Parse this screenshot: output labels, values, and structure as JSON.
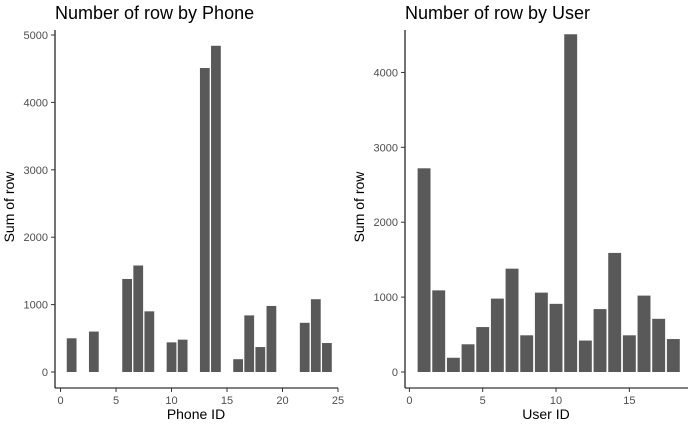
{
  "colors": {
    "bar": "#595959",
    "axis": "#000000",
    "tick_label": "#4d4d4d",
    "background": "#ffffff"
  },
  "chart_data": [
    {
      "type": "bar",
      "title": "Number of row by Phone",
      "xlabel": "Phone ID",
      "ylabel": "Sum of row",
      "xlim": [
        -0.5,
        25
      ],
      "ylim": [
        0,
        5000
      ],
      "xticks": [
        0,
        5,
        10,
        15,
        20,
        25
      ],
      "yticks": [
        0,
        1000,
        2000,
        3000,
        4000,
        5000
      ],
      "grid": false,
      "x": [
        1,
        3,
        6,
        7,
        8,
        10,
        11,
        13,
        14,
        16,
        17,
        18,
        19,
        22,
        23,
        24
      ],
      "values": [
        500,
        600,
        1380,
        1580,
        900,
        440,
        480,
        4510,
        4840,
        190,
        840,
        370,
        980,
        730,
        1080,
        430
      ]
    },
    {
      "type": "bar",
      "title": "Number of row by User",
      "xlabel": "User ID",
      "ylabel": "Sum of row",
      "xlim": [
        -0.3,
        19
      ],
      "ylim": [
        0,
        4500
      ],
      "xticks": [
        0,
        5,
        10,
        15
      ],
      "yticks": [
        0,
        1000,
        2000,
        3000,
        4000
      ],
      "grid": false,
      "x": [
        1,
        2,
        3,
        4,
        5,
        6,
        7,
        8,
        9,
        10,
        11,
        12,
        13,
        14,
        15,
        16,
        17,
        18
      ],
      "values": [
        2720,
        1090,
        190,
        370,
        600,
        980,
        1380,
        490,
        1060,
        910,
        4510,
        420,
        840,
        1590,
        490,
        1020,
        710,
        440
      ]
    }
  ]
}
